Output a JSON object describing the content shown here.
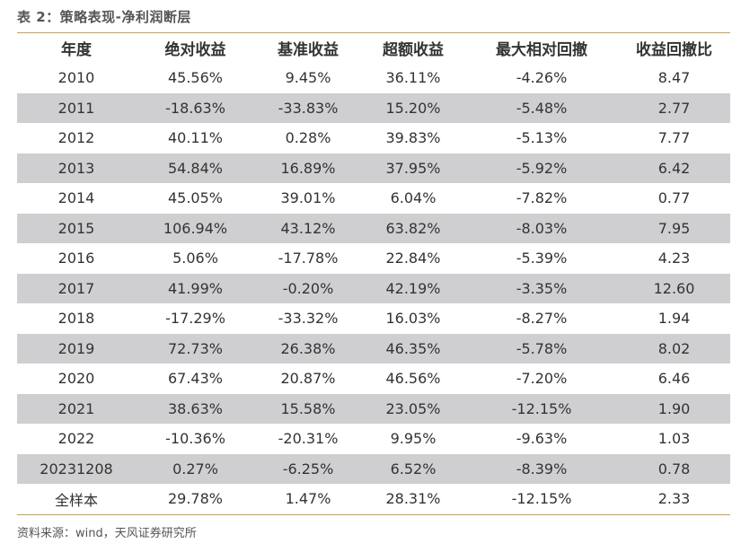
{
  "title": "表 2：策略表现-净利润断层",
  "table": {
    "headers": [
      "年度",
      "绝对收益",
      "基准收益",
      "超额收益",
      "最大相对回撤",
      "收益回撤比"
    ],
    "rows": [
      [
        "2010",
        "45.56%",
        "9.45%",
        "36.11%",
        "-4.26%",
        "8.47"
      ],
      [
        "2011",
        "-18.63%",
        "-33.83%",
        "15.20%",
        "-5.48%",
        "2.77"
      ],
      [
        "2012",
        "40.11%",
        "0.28%",
        "39.83%",
        "-5.13%",
        "7.77"
      ],
      [
        "2013",
        "54.84%",
        "16.89%",
        "37.95%",
        "-5.92%",
        "6.42"
      ],
      [
        "2014",
        "45.05%",
        "39.01%",
        "6.04%",
        "-7.82%",
        "0.77"
      ],
      [
        "2015",
        "106.94%",
        "43.12%",
        "63.82%",
        "-8.03%",
        "7.95"
      ],
      [
        "2016",
        "5.06%",
        "-17.78%",
        "22.84%",
        "-5.39%",
        "4.23"
      ],
      [
        "2017",
        "41.99%",
        "-0.20%",
        "42.19%",
        "-3.35%",
        "12.60"
      ],
      [
        "2018",
        "-17.29%",
        "-33.32%",
        "16.03%",
        "-8.27%",
        "1.94"
      ],
      [
        "2019",
        "72.73%",
        "26.38%",
        "46.35%",
        "-5.78%",
        "8.02"
      ],
      [
        "2020",
        "67.43%",
        "20.87%",
        "46.56%",
        "-7.20%",
        "6.46"
      ],
      [
        "2021",
        "38.63%",
        "15.58%",
        "23.05%",
        "-12.15%",
        "1.90"
      ],
      [
        "2022",
        "-10.36%",
        "-20.31%",
        "9.95%",
        "-9.63%",
        "1.03"
      ],
      [
        "20231208",
        "0.27%",
        "-6.25%",
        "6.52%",
        "-8.39%",
        "0.78"
      ],
      [
        "全样本",
        "29.78%",
        "1.47%",
        "28.31%",
        "-12.15%",
        "2.33"
      ]
    ]
  },
  "source": "资料来源：wind，天风证券研究所",
  "colors": {
    "rule": "#c9a24a",
    "shade": "#cfcfd1"
  }
}
